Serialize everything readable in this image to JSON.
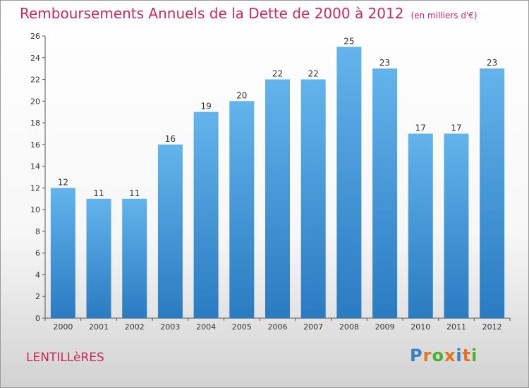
{
  "title": "Remboursements Annuels de la Dette de 2000 à 2012",
  "unit": "(en milliers d'€)",
  "place": "LENTILLèRES",
  "logo": {
    "text": "Proxiti",
    "colors": [
      "#3a7fc4",
      "#e9731b",
      "#4caf35",
      "#e9731b",
      "#3a7fc4",
      "#e9731b",
      "#4caf35"
    ]
  },
  "colors": {
    "bar_top": "#63b3ec",
    "bar_bottom": "#2a7bc1",
    "title": "#c8285a"
  },
  "chart_data": {
    "type": "bar",
    "title": "Remboursements Annuels de la Dette de 2000 à 2012",
    "xlabel": "",
    "ylabel": "",
    "categories": [
      "2000",
      "2001",
      "2002",
      "2003",
      "2004",
      "2005",
      "2006",
      "2007",
      "2008",
      "2009",
      "2010",
      "2011",
      "2012"
    ],
    "values": [
      12,
      11,
      11,
      16,
      19,
      20,
      22,
      22,
      25,
      23,
      17,
      17,
      23
    ],
    "ylim": [
      0,
      26
    ],
    "yticks": [
      0,
      2,
      4,
      6,
      8,
      10,
      12,
      14,
      16,
      18,
      20,
      22,
      24,
      26
    ],
    "grid": false,
    "legend": "none"
  }
}
